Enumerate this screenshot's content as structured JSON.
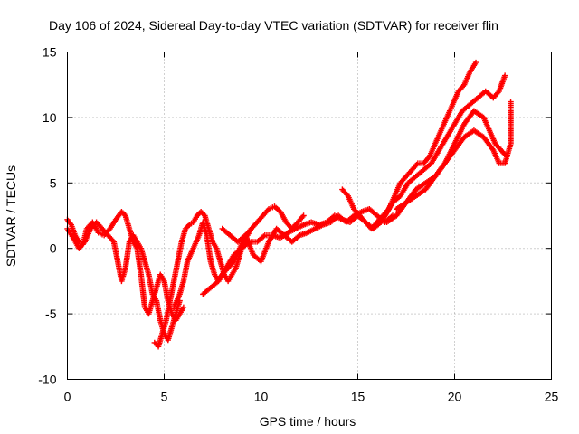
{
  "chart_data": {
    "type": "scatter",
    "title": "Day 106 of 2024, Sidereal Day-to-day VTEC variation (SDTVAR) for receiver flin",
    "xlabel": "GPS time / hours",
    "ylabel": "SDTVAR / TECUs",
    "xlim": [
      0,
      25
    ],
    "ylim": [
      -10,
      15
    ],
    "xticks": [
      0,
      5,
      10,
      15,
      20,
      25
    ],
    "yticks": [
      -10,
      -5,
      0,
      5,
      10,
      15
    ],
    "xtick_labels": [
      "0",
      "5",
      "10",
      "15",
      "20",
      "25"
    ],
    "ytick_labels": [
      "-10",
      "-5",
      "0",
      "5",
      "10",
      "15"
    ],
    "grid": true,
    "marker": "+",
    "color": "#ff0000",
    "series": [
      {
        "x": [
          0.0,
          0.2,
          0.4,
          0.6,
          0.8,
          1.0,
          1.3,
          1.6,
          1.9,
          2.2,
          2.5,
          2.8,
          3.0,
          3.2,
          3.4,
          3.6,
          3.8,
          4.0,
          4.2,
          4.4,
          4.6,
          4.8,
          5.0,
          5.2,
          5.4,
          5.6,
          5.8,
          6.0
        ],
        "y": [
          2.2,
          1.8,
          1.0,
          0.5,
          0.3,
          1.5,
          2.0,
          1.2,
          1.0,
          1.5,
          2.2,
          2.8,
          2.5,
          1.5,
          0.5,
          0.0,
          -2.0,
          -4.5,
          -5.0,
          -4.0,
          -3.0,
          -2.0,
          -2.5,
          -4.0,
          -5.0,
          -5.5,
          -5.0,
          -4.5
        ]
      },
      {
        "x": [
          0.0,
          0.3,
          0.6,
          0.9,
          1.2,
          1.5,
          1.8,
          2.1,
          2.4,
          2.6,
          2.8,
          3.0,
          3.2,
          3.4,
          3.6,
          3.8,
          4.0,
          4.2,
          4.4,
          4.6,
          4.8,
          5.0,
          5.2,
          5.4,
          5.6,
          5.8
        ],
        "y": [
          1.5,
          0.8,
          0.0,
          0.5,
          1.5,
          2.0,
          1.5,
          1.0,
          0.5,
          -1.0,
          -2.5,
          -1.5,
          0.5,
          1.0,
          0.5,
          0.0,
          -1.0,
          -2.0,
          -3.5,
          -4.0,
          -5.5,
          -6.5,
          -7.0,
          -6.0,
          -5.0,
          -4.0
        ]
      },
      {
        "x": [
          4.5,
          4.7,
          4.9,
          5.1,
          5.3,
          5.5,
          5.7,
          5.9,
          6.1,
          6.3,
          6.5,
          6.7,
          6.9,
          7.1,
          7.3,
          7.5,
          7.7,
          7.9,
          8.1,
          8.3,
          8.5,
          8.7,
          8.9,
          9.1,
          9.3,
          9.5
        ],
        "y": [
          -7.2,
          -7.5,
          -6.5,
          -5.5,
          -4.0,
          -2.5,
          -1.0,
          0.5,
          1.5,
          1.8,
          2.0,
          2.5,
          2.8,
          2.5,
          1.5,
          0.5,
          0.0,
          -1.0,
          -2.0,
          -2.5,
          -2.0,
          -1.5,
          -0.5,
          0.5,
          1.0,
          1.5
        ]
      },
      {
        "x": [
          5.5,
          5.8,
          6.0,
          6.2,
          6.5,
          6.8,
          7.0,
          7.2,
          7.4,
          7.6,
          7.8,
          8.0,
          8.3,
          8.6,
          8.9,
          9.2,
          9.5,
          9.8,
          10.1,
          10.4,
          10.7,
          11.0,
          11.3,
          11.6,
          11.9,
          12.2
        ],
        "y": [
          -4.5,
          -3.5,
          -2.5,
          -1.0,
          0.0,
          1.0,
          2.0,
          1.0,
          -1.0,
          -2.0,
          -2.5,
          -2.0,
          -1.5,
          -1.0,
          0.0,
          1.0,
          1.5,
          2.0,
          2.5,
          3.0,
          3.2,
          2.8,
          2.0,
          1.5,
          2.0,
          2.5
        ]
      },
      {
        "x": [
          7.0,
          7.4,
          7.8,
          8.2,
          8.6,
          9.0,
          9.4,
          9.8,
          10.2,
          10.6,
          11.0,
          11.4,
          11.8,
          12.2,
          12.6,
          13.0,
          13.4,
          13.8,
          14.2,
          14.6,
          15.0,
          15.4,
          15.8,
          16.2,
          16.6
        ],
        "y": [
          -3.5,
          -3.0,
          -2.5,
          -1.5,
          -0.5,
          0.0,
          0.5,
          0.5,
          1.0,
          1.0,
          0.8,
          1.2,
          1.5,
          1.8,
          2.0,
          1.8,
          2.0,
          2.5,
          2.2,
          2.0,
          2.5,
          2.0,
          1.5,
          2.0,
          3.0
        ]
      },
      {
        "x": [
          8.0,
          8.4,
          8.8,
          9.2,
          9.6,
          10.0,
          10.4,
          10.8,
          11.2,
          11.6,
          12.0,
          12.4,
          12.8,
          13.2,
          13.6,
          14.0,
          14.4,
          14.8,
          15.2,
          15.6,
          16.0,
          16.4,
          16.8
        ],
        "y": [
          1.5,
          1.0,
          0.5,
          1.0,
          -0.5,
          -1.0,
          0.5,
          1.5,
          1.0,
          0.5,
          1.0,
          1.2,
          1.5,
          1.8,
          2.0,
          2.5,
          2.0,
          2.5,
          2.8,
          3.0,
          2.5,
          2.0,
          2.5
        ]
      },
      {
        "x": [
          14.2,
          14.5,
          14.8,
          15.1,
          15.4,
          15.7,
          16.0,
          16.3,
          16.6,
          16.9,
          17.2,
          17.5,
          17.8,
          18.1,
          18.4,
          18.7,
          19.0,
          19.3,
          19.6,
          19.9,
          20.2,
          20.5,
          20.8,
          21.1
        ],
        "y": [
          4.5,
          4.0,
          3.0,
          2.5,
          2.0,
          1.5,
          2.0,
          2.5,
          3.0,
          4.0,
          5.0,
          5.5,
          6.0,
          6.5,
          6.5,
          7.0,
          8.0,
          9.0,
          10.0,
          11.0,
          12.0,
          12.5,
          13.5,
          14.2
        ]
      },
      {
        "x": [
          16.0,
          16.4,
          16.8,
          17.2,
          17.6,
          18.0,
          18.4,
          18.8,
          19.2,
          19.6,
          20.0,
          20.4,
          20.8,
          21.2,
          21.6,
          22.0,
          22.3,
          22.6
        ],
        "y": [
          2.0,
          2.5,
          3.5,
          4.0,
          5.0,
          5.5,
          6.0,
          6.5,
          7.5,
          8.5,
          9.5,
          10.5,
          11.0,
          11.5,
          12.0,
          11.5,
          12.0,
          13.2
        ]
      },
      {
        "x": [
          16.5,
          17.0,
          17.5,
          18.0,
          18.5,
          19.0,
          19.5,
          20.0,
          20.5,
          21.0,
          21.5,
          21.8,
          22.1,
          22.4,
          22.7
        ],
        "y": [
          2.0,
          2.5,
          3.5,
          4.0,
          4.5,
          5.5,
          6.5,
          8.0,
          9.5,
          10.5,
          10.0,
          9.0,
          8.0,
          7.5,
          7.0
        ]
      },
      {
        "x": [
          17.0,
          17.5,
          18.0,
          18.5,
          19.0,
          19.5,
          20.0,
          20.5,
          21.0,
          21.5,
          22.0,
          22.3,
          22.6,
          22.9,
          22.9,
          22.9,
          22.9
        ],
        "y": [
          3.0,
          3.5,
          4.5,
          5.0,
          5.5,
          6.5,
          7.5,
          8.5,
          9.0,
          8.5,
          7.5,
          6.5,
          6.5,
          8.0,
          9.5,
          10.5,
          11.2
        ]
      }
    ]
  }
}
